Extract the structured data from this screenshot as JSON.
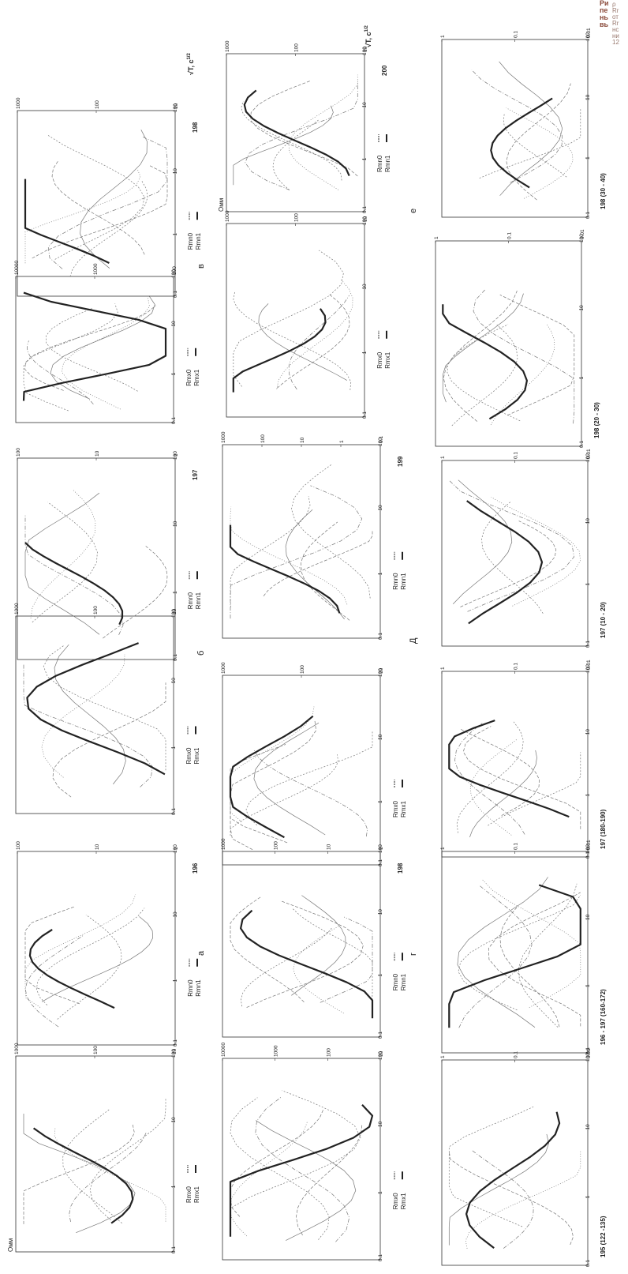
{
  "caption_fragment": {
    "line1": "Ри",
    "line2": "пе",
    "line3": "нь",
    "line4": "вь",
    "line5": "ρ",
    "line6": "Rr",
    "line7": "от",
    "line8": "Rr",
    "line9": "нс",
    "line10": "ни",
    "line11": "12"
  },
  "units": {
    "ohm": "Омм",
    "sqrtT": "√T, c",
    "sqrtT_exp": "1/2"
  },
  "section_labels": [
    "а",
    "б",
    "в",
    "г",
    "Д",
    "е"
  ],
  "panels": [
    {
      "id": "p1",
      "number": "",
      "ylabels": [
        "1000",
        "100",
        "10"
      ],
      "xlabels": [
        "0.1",
        "1",
        "10",
        "100"
      ],
      "legend": [
        "Rmx0",
        "Rmx1"
      ],
      "unit_label": true
    },
    {
      "id": "p2",
      "number": "196",
      "ylabels": [
        "100",
        "10",
        "1"
      ],
      "xlabels": [
        "0.1",
        "1",
        "10",
        "100"
      ],
      "legend": [
        "Rmn0",
        "Rmn1"
      ]
    },
    {
      "id": "p3",
      "number": "",
      "ylabels": [
        "1000",
        "100",
        "10"
      ],
      "xlabels": [
        "0.1",
        "1",
        "10",
        "100"
      ],
      "legend": [
        "Rmx0",
        "Rmx1"
      ]
    },
    {
      "id": "p4",
      "number": "197",
      "ylabels": [
        "100",
        "10",
        "1"
      ],
      "xlabels": [
        "0.1",
        "1",
        "10",
        "100"
      ],
      "legend": [
        "Rmn0",
        "Rmn1"
      ]
    },
    {
      "id": "p5",
      "number": "",
      "ylabels": [
        "10000",
        "1000",
        "100"
      ],
      "xlabels": [
        "0.1",
        "1",
        "10",
        "100"
      ],
      "legend": [
        "Rmx0",
        "Rmx1"
      ]
    },
    {
      "id": "p6",
      "number": "198",
      "ylabels": [
        "1000",
        "100",
        "10"
      ],
      "xlabels": [
        "0.1",
        "1",
        "10",
        "100"
      ],
      "legend": [
        "Rmn0",
        "Rmn1"
      ]
    },
    {
      "id": "p7",
      "number": "",
      "ylabels": [
        "10000",
        "1000",
        "100",
        "10"
      ],
      "xlabels": [
        "0.1",
        "1",
        "10",
        "100"
      ],
      "legend": [
        "Rmx0",
        "Rmx1"
      ]
    },
    {
      "id": "p8",
      "number": "198",
      "ylabels": [
        "1000",
        "100",
        "10",
        "1"
      ],
      "xlabels": [
        "0.1",
        "1",
        "10",
        "100"
      ],
      "legend": [
        "Rmn0",
        "Rmn1"
      ]
    },
    {
      "id": "p9",
      "number": "",
      "ylabels": [
        "1000",
        "100",
        "10"
      ],
      "xlabels": [
        "0.1",
        "1",
        "10",
        "100"
      ],
      "legend": [
        "Rmx0",
        "Rmx1"
      ]
    },
    {
      "id": "p10",
      "number": "199",
      "ylabels": [
        "1000",
        "100",
        "10",
        "1",
        "0.1"
      ],
      "xlabels": [
        "0.1",
        "1",
        "10",
        "100"
      ],
      "legend": [
        "Rmn0",
        "Rmn1"
      ]
    },
    {
      "id": "p11",
      "number": "",
      "ylabels": [
        "1000",
        "100",
        "10"
      ],
      "xlabels": [
        "0.1",
        "1",
        "10",
        "100"
      ],
      "legend": [
        "Rmx0",
        "Rmx1"
      ]
    },
    {
      "id": "p12",
      "number": "200",
      "ylabels": [
        "1000",
        "100",
        "10"
      ],
      "xlabels": [
        "0.1",
        "1",
        "10",
        "100"
      ],
      "legend": [
        "Rmn0",
        "Rmn1"
      ],
      "unit_label": true
    },
    {
      "id": "p13",
      "number": "195  (122 -135)",
      "ylabels": [
        "1",
        "0.1",
        "0.01"
      ],
      "xlabels": [
        "0.1",
        "1",
        "10",
        "100"
      ]
    },
    {
      "id": "p14",
      "number": "196 - 197  (160-172)",
      "ylabels": [
        "1",
        "0.1",
        "0.01"
      ],
      "xlabels": [
        "0.1",
        "1",
        "10",
        "100"
      ]
    },
    {
      "id": "p15",
      "number": "197  (180-190)",
      "ylabels": [
        "1",
        "0.1",
        "0.01"
      ],
      "xlabels": [
        "0.1",
        "1",
        "10",
        "100"
      ]
    },
    {
      "id": "p16",
      "number": "197  (10 - 20)",
      "ylabels": [
        "1",
        "0.1",
        "0.01"
      ],
      "xlabels": [
        "0.1",
        "1",
        "10",
        "100"
      ]
    },
    {
      "id": "p17",
      "number": "198 (20 - 30)",
      "ylabels": [
        "1",
        "0.1",
        "0.01"
      ],
      "xlabels": [
        "0.1",
        "1",
        "10",
        "100"
      ]
    },
    {
      "id": "p18",
      "number": "198  (30 - 40)",
      "ylabels": [
        "1",
        "0.1",
        "0.01"
      ],
      "xlabels": [
        "0.1",
        "1",
        "10",
        "100"
      ]
    }
  ]
}
